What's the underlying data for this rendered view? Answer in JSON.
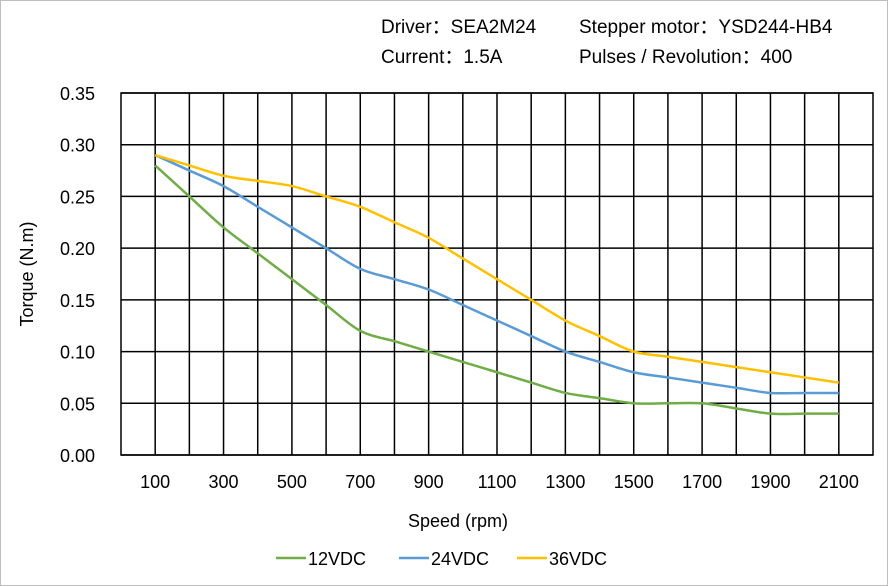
{
  "header": {
    "driver": "Driver：SEA2M24",
    "motor": "Stepper  motor：YSD244-HB4",
    "current": "Current：1.5A",
    "pulses": "Pulses / Revolution：400"
  },
  "chart_data": {
    "type": "line",
    "title": "",
    "xlabel": "Speed  (rpm)",
    "ylabel": "Torque (N.m)",
    "xlim": [
      0,
      2200
    ],
    "ylim": [
      0,
      0.35
    ],
    "grid": true,
    "legend": "bottom",
    "x_ticks": [
      "100",
      "300",
      "500",
      "700",
      "900",
      "1100",
      "1300",
      "1500",
      "1700",
      "1900",
      "2100"
    ],
    "y_ticks": [
      "0.00",
      "0.05",
      "0.10",
      "0.15",
      "0.20",
      "0.25",
      "0.30",
      "0.35"
    ],
    "x": [
      100,
      200,
      300,
      400,
      500,
      600,
      700,
      800,
      900,
      1000,
      1100,
      1200,
      1300,
      1400,
      1500,
      1600,
      1700,
      1800,
      1900,
      2000,
      2100
    ],
    "series": [
      {
        "name": "12VDC",
        "color": "#70ad47",
        "values": [
          0.28,
          0.25,
          0.22,
          0.195,
          0.17,
          0.145,
          0.12,
          0.11,
          0.1,
          0.09,
          0.08,
          0.07,
          0.06,
          0.055,
          0.05,
          0.05,
          0.05,
          0.045,
          0.04,
          0.04,
          0.04
        ]
      },
      {
        "name": "24VDC",
        "color": "#5b9bd5",
        "values": [
          0.29,
          0.275,
          0.26,
          0.24,
          0.22,
          0.2,
          0.18,
          0.17,
          0.16,
          0.145,
          0.13,
          0.115,
          0.1,
          0.09,
          0.08,
          0.075,
          0.07,
          0.065,
          0.06,
          0.06,
          0.06
        ]
      },
      {
        "name": "36VDC",
        "color": "#ffc000",
        "values": [
          0.29,
          0.28,
          0.27,
          0.265,
          0.26,
          0.25,
          0.24,
          0.225,
          0.21,
          0.19,
          0.17,
          0.15,
          0.13,
          0.115,
          0.1,
          0.095,
          0.09,
          0.085,
          0.08,
          0.075,
          0.07
        ]
      }
    ]
  }
}
